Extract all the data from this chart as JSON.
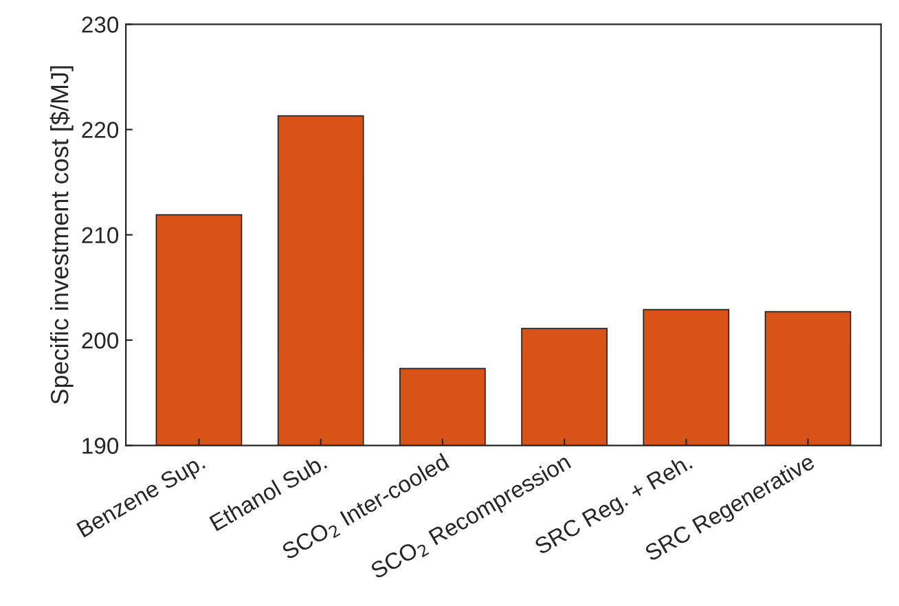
{
  "chart_data": {
    "type": "bar",
    "ylabel": "Specific investment cost [$/MJ]",
    "categories": [
      "Benzene Sup.",
      "Ethanol Sub.",
      "SCO$_{2}$ Inter-cooled",
      "SCO$_{2}$ Recompression",
      "SRC Reg. + Reh.",
      "SRC Regenerative"
    ],
    "values": [
      211.9,
      221.3,
      197.3,
      201.1,
      202.9,
      202.7
    ],
    "color": "#d95319",
    "ylim": [
      190,
      230
    ],
    "yticks": [
      190,
      200,
      210,
      220,
      230
    ],
    "grid": false
  }
}
